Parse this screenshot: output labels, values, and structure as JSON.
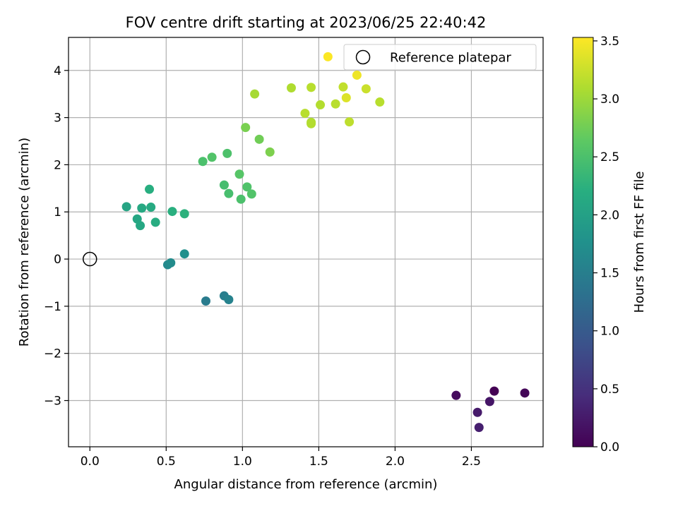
{
  "chart_data": {
    "type": "scatter",
    "title": "FOV centre drift starting at 2023/06/25 22:40:42",
    "xlabel": "Angular distance from reference (arcmin)",
    "ylabel": "Rotation from reference (arcmin)",
    "xlim": [
      -0.14,
      2.97
    ],
    "ylim": [
      -3.98,
      4.7
    ],
    "xticks": [
      0.0,
      0.5,
      1.0,
      1.5,
      2.0,
      2.5
    ],
    "xtick_labels": [
      "0.0",
      "0.5",
      "1.0",
      "1.5",
      "2.0",
      "2.5"
    ],
    "yticks": [
      -3,
      -2,
      -1,
      0,
      1,
      2,
      3,
      4
    ],
    "ytick_labels": [
      "−3",
      "−2",
      "−1",
      "0",
      "1",
      "2",
      "3",
      "4"
    ],
    "grid": true,
    "legend": {
      "position": "top-right",
      "entries": [
        "Reference platepar"
      ]
    },
    "reference_point": {
      "x": 0.0,
      "y": 0.0
    },
    "colorbar": {
      "label": "Hours from first FF file",
      "colormap": "viridis",
      "range": [
        0.0,
        3.53
      ],
      "ticks": [
        0.0,
        0.5,
        1.0,
        1.5,
        2.0,
        2.5,
        3.0,
        3.5
      ],
      "tick_labels": [
        "0.0",
        "0.5",
        "1.0",
        "1.5",
        "2.0",
        "2.5",
        "3.0",
        "3.5"
      ]
    },
    "points": [
      {
        "x": 2.65,
        "y": -2.8,
        "hours": 0.0
      },
      {
        "x": 2.85,
        "y": -2.84,
        "hours": 0.05
      },
      {
        "x": 2.4,
        "y": -2.89,
        "hours": 0.1
      },
      {
        "x": 2.62,
        "y": -3.02,
        "hours": 0.2
      },
      {
        "x": 2.54,
        "y": -3.25,
        "hours": 0.25
      },
      {
        "x": 2.55,
        "y": -3.57,
        "hours": 0.3
      },
      {
        "x": 0.76,
        "y": -0.89,
        "hours": 1.45
      },
      {
        "x": 0.88,
        "y": -0.78,
        "hours": 1.5
      },
      {
        "x": 0.91,
        "y": -0.86,
        "hours": 1.55
      },
      {
        "x": 0.51,
        "y": -0.12,
        "hours": 1.65
      },
      {
        "x": 0.53,
        "y": -0.08,
        "hours": 1.7
      },
      {
        "x": 0.62,
        "y": 0.11,
        "hours": 1.75
      },
      {
        "x": 0.24,
        "y": 1.11,
        "hours": 2.05
      },
      {
        "x": 0.31,
        "y": 0.85,
        "hours": 2.08
      },
      {
        "x": 0.33,
        "y": 0.71,
        "hours": 2.1
      },
      {
        "x": 0.34,
        "y": 1.08,
        "hours": 2.12
      },
      {
        "x": 0.4,
        "y": 1.1,
        "hours": 2.15
      },
      {
        "x": 0.43,
        "y": 0.78,
        "hours": 2.18
      },
      {
        "x": 0.39,
        "y": 1.48,
        "hours": 2.2
      },
      {
        "x": 0.54,
        "y": 1.01,
        "hours": 2.22
      },
      {
        "x": 0.62,
        "y": 0.96,
        "hours": 2.25
      },
      {
        "x": 0.74,
        "y": 2.07,
        "hours": 2.5
      },
      {
        "x": 0.8,
        "y": 2.16,
        "hours": 2.55
      },
      {
        "x": 0.9,
        "y": 2.24,
        "hours": 2.52
      },
      {
        "x": 0.88,
        "y": 1.57,
        "hours": 2.45
      },
      {
        "x": 0.91,
        "y": 1.39,
        "hours": 2.47
      },
      {
        "x": 0.98,
        "y": 1.8,
        "hours": 2.58
      },
      {
        "x": 0.99,
        "y": 1.27,
        "hours": 2.5
      },
      {
        "x": 1.03,
        "y": 1.53,
        "hours": 2.53
      },
      {
        "x": 1.06,
        "y": 1.38,
        "hours": 2.55
      },
      {
        "x": 1.02,
        "y": 2.79,
        "hours": 2.8
      },
      {
        "x": 1.11,
        "y": 2.54,
        "hours": 2.75
      },
      {
        "x": 1.18,
        "y": 2.27,
        "hours": 2.82
      },
      {
        "x": 1.08,
        "y": 3.5,
        "hours": 3.05
      },
      {
        "x": 1.32,
        "y": 3.63,
        "hours": 3.1
      },
      {
        "x": 1.45,
        "y": 3.64,
        "hours": 3.15
      },
      {
        "x": 1.41,
        "y": 3.09,
        "hours": 3.15
      },
      {
        "x": 1.45,
        "y": 2.9,
        "hours": 3.1
      },
      {
        "x": 1.45,
        "y": 2.87,
        "hours": 3.12
      },
      {
        "x": 1.51,
        "y": 3.27,
        "hours": 3.12
      },
      {
        "x": 1.61,
        "y": 3.29,
        "hours": 3.15
      },
      {
        "x": 1.66,
        "y": 3.65,
        "hours": 3.2
      },
      {
        "x": 1.68,
        "y": 3.42,
        "hours": 3.35
      },
      {
        "x": 1.7,
        "y": 2.91,
        "hours": 3.18
      },
      {
        "x": 1.81,
        "y": 3.61,
        "hours": 3.25
      },
      {
        "x": 1.9,
        "y": 3.33,
        "hours": 3.15
      },
      {
        "x": 1.75,
        "y": 3.9,
        "hours": 3.45
      },
      {
        "x": 1.56,
        "y": 4.29,
        "hours": 3.52
      }
    ]
  }
}
